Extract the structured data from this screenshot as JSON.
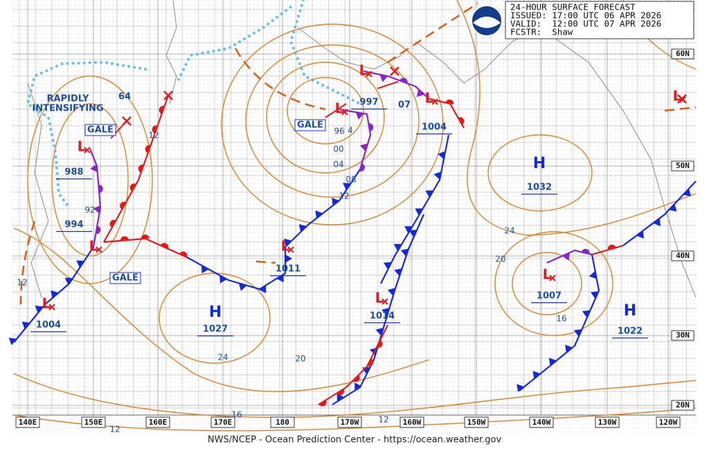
{
  "header": {
    "title": "24-HOUR SURFACE FORECAST",
    "issued": "ISSUED: 17:00 UTC 06 APR 2026",
    "valid": "VALID:  12:00 UTC 07 APR 2026",
    "forecaster": "FCSTR:  Shaw"
  },
  "footer": "NWS/NCEP - Ocean Prediction Center - https://ocean.weather.gov",
  "longitudes": [
    "140E",
    "150E",
    "160E",
    "170E",
    "180",
    "170W",
    "160W",
    "150W",
    "140W",
    "130W",
    "120W"
  ],
  "latitudes": [
    "60N",
    "50N",
    "40N",
    "30N",
    "20N"
  ],
  "highs": [
    {
      "symbol": "H",
      "pressure": "1032"
    },
    {
      "symbol": "H",
      "pressure": "1027"
    },
    {
      "symbol": "H",
      "pressure": "1022"
    }
  ],
  "lows": [
    {
      "symbol": "L",
      "pressure": "988"
    },
    {
      "symbol": "L",
      "pressure": "994"
    },
    {
      "symbol": "L",
      "pressure": "1004"
    },
    {
      "symbol": "L",
      "pressure": "997"
    },
    {
      "symbol": "L",
      "pressure": "1004"
    },
    {
      "symbol": "L",
      "pressure": "1011"
    },
    {
      "symbol": "L",
      "pressure": "1014"
    },
    {
      "symbol": "L",
      "pressure": "1007"
    },
    {
      "symbol": "L"
    },
    {
      "symbol": "L"
    }
  ],
  "annotations": {
    "rapidly_intensifying": [
      "RAPIDLY",
      "INTENSIFYING"
    ],
    "wind_labels": [
      "64",
      "07"
    ],
    "gale": [
      "GALE",
      "GALE",
      "GALE"
    ]
  },
  "isobar_labels": [
    "12",
    "92",
    "96",
    "4",
    "00",
    "04",
    "08",
    "12",
    "24",
    "20",
    "16",
    "24",
    "20",
    "16",
    "12",
    "12",
    "12"
  ]
}
